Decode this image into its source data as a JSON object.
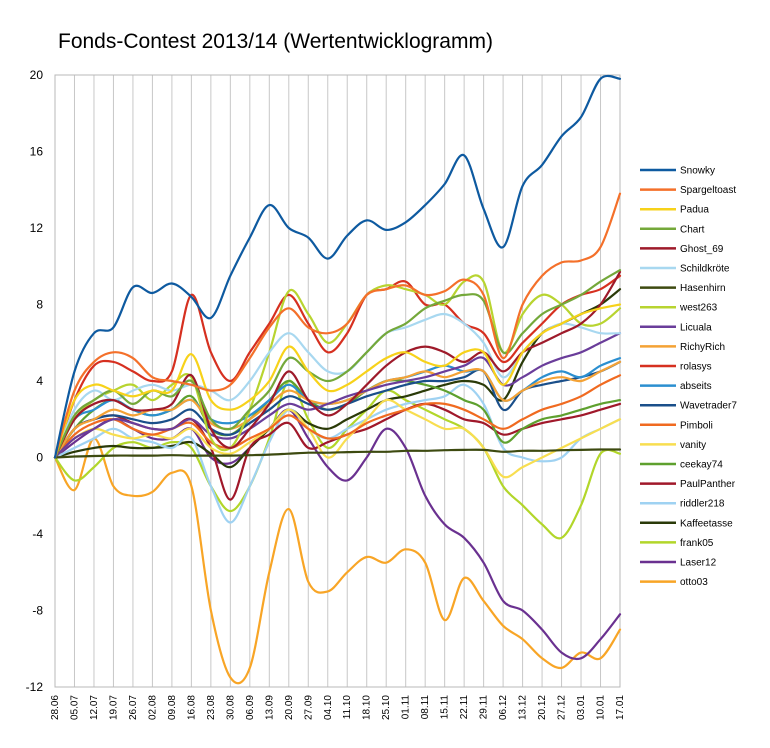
{
  "chart_data": {
    "type": "line",
    "title": "Fonds-Contest 2013/14 (Wertentwicklogramm)",
    "ylim": [
      -12,
      20
    ],
    "yticks": [
      -12,
      -8,
      -4,
      0,
      4,
      8,
      12,
      16,
      20
    ],
    "grid": "vertical",
    "legend_position": "right",
    "x": [
      "28.06",
      "05.07",
      "12.07",
      "19.07",
      "26.07",
      "02.08",
      "09.08",
      "16.08",
      "23.08",
      "30.08",
      "06.09",
      "13.09",
      "20.09",
      "27.09",
      "04.10",
      "11.10",
      "18.10",
      "25.10",
      "01.11",
      "08.11",
      "15.11",
      "22.11",
      "29.11",
      "06.12",
      "13.12",
      "20.12",
      "27.12",
      "03.01",
      "10.01",
      "17.01"
    ],
    "series": [
      {
        "name": "Snowky",
        "color": "#0e5aa0",
        "values": [
          0,
          4.5,
          6.5,
          6.8,
          8.9,
          8.6,
          9.1,
          8.4,
          7.3,
          9.5,
          11.5,
          13.2,
          12.0,
          11.5,
          10.4,
          11.6,
          12.4,
          11.9,
          12.3,
          13.2,
          14.3,
          15.8,
          13.0,
          11.0,
          14.2,
          15.3,
          16.8,
          17.8,
          19.8,
          19.8
        ]
      },
      {
        "name": "Spargeltoast",
        "color": "#f4702a",
        "values": [
          0,
          3.5,
          5.0,
          5.5,
          5.2,
          4.2,
          4.0,
          3.8,
          3.5,
          3.8,
          5.2,
          6.8,
          7.8,
          6.8,
          6.5,
          7.0,
          8.5,
          8.8,
          9.0,
          8.5,
          8.7,
          9.3,
          8.5,
          5.2,
          8.0,
          9.5,
          10.2,
          10.3,
          11.0,
          13.8
        ]
      },
      {
        "name": "Padua",
        "color": "#f7d21a",
        "values": [
          0,
          3.0,
          3.8,
          3.5,
          3.2,
          3.5,
          3.5,
          5.4,
          3.0,
          2.5,
          3.0,
          4.0,
          5.8,
          4.5,
          3.5,
          3.8,
          4.5,
          5.2,
          5.5,
          5.0,
          4.8,
          5.5,
          5.5,
          3.8,
          5.5,
          6.5,
          7.0,
          7.5,
          7.8,
          8.0
        ]
      },
      {
        "name": "Chart",
        "color": "#74a83a",
        "values": [
          0,
          2.2,
          3.0,
          3.5,
          2.8,
          3.5,
          3.2,
          4.0,
          2.0,
          1.5,
          2.5,
          3.5,
          5.2,
          4.5,
          4.0,
          4.5,
          5.5,
          6.5,
          7.0,
          7.8,
          8.2,
          8.5,
          8.2,
          5.5,
          6.5,
          7.5,
          8.0,
          8.5,
          9.2,
          9.8
        ]
      },
      {
        "name": "Ghost_69",
        "color": "#9e1a2a",
        "values": [
          0,
          2.0,
          2.8,
          3.0,
          2.5,
          2.5,
          2.8,
          4.3,
          1.5,
          0.5,
          1.5,
          2.8,
          4.5,
          3.0,
          2.2,
          2.8,
          3.8,
          4.8,
          5.5,
          5.8,
          5.5,
          5.0,
          5.5,
          4.5,
          5.5,
          6.0,
          6.5,
          7.0,
          8.0,
          9.7
        ]
      },
      {
        "name": "Schildkröte",
        "color": "#a8d8f0",
        "values": [
          0,
          2.5,
          3.5,
          3.0,
          3.5,
          3.8,
          3.5,
          3.8,
          3.5,
          3.0,
          4.0,
          5.5,
          6.5,
          5.5,
          4.5,
          4.5,
          5.5,
          6.5,
          6.8,
          7.2,
          7.5,
          7.0,
          6.0,
          4.2,
          5.5,
          6.5,
          7.0,
          6.8,
          6.5,
          6.5
        ]
      },
      {
        "name": "Hasenhirn",
        "color": "#3d4a10",
        "values": [
          0,
          0.05,
          0.08,
          0.1,
          0.1,
          0.1,
          0.12,
          0.1,
          0.1,
          0.1,
          0.12,
          0.15,
          0.2,
          0.25,
          0.25,
          0.28,
          0.3,
          0.3,
          0.35,
          0.35,
          0.38,
          0.4,
          0.4,
          0.3,
          0.35,
          0.35,
          0.38,
          0.4,
          0.42,
          0.42
        ]
      },
      {
        "name": "west263",
        "color": "#b8d430",
        "values": [
          0,
          2.0,
          3.0,
          3.5,
          3.8,
          3.0,
          3.8,
          4.2,
          1.0,
          0.5,
          2.5,
          5.5,
          8.7,
          7.5,
          6.0,
          7.0,
          8.5,
          9.0,
          8.8,
          8.5,
          8.0,
          9.2,
          9.2,
          5.5,
          7.5,
          8.5,
          8.0,
          7.0,
          7.0,
          7.8
        ]
      },
      {
        "name": "Licuala",
        "color": "#6a3d9a",
        "values": [
          0,
          1.0,
          1.5,
          2.0,
          1.8,
          1.5,
          1.5,
          2.0,
          1.2,
          1.0,
          1.5,
          2.2,
          2.8,
          2.5,
          2.8,
          3.2,
          3.5,
          3.8,
          4.0,
          4.2,
          4.5,
          4.8,
          5.2,
          3.8,
          4.2,
          4.8,
          5.2,
          5.5,
          6.0,
          6.5
        ]
      },
      {
        "name": "RichyRich",
        "color": "#f4a235",
        "values": [
          0,
          1.5,
          2.0,
          2.5,
          2.2,
          2.5,
          2.5,
          3.0,
          1.8,
          1.5,
          2.0,
          2.8,
          3.5,
          3.0,
          2.8,
          3.0,
          3.5,
          4.0,
          4.2,
          4.5,
          4.2,
          4.5,
          4.5,
          3.0,
          3.5,
          4.0,
          4.2,
          4.0,
          4.5,
          5.0
        ]
      },
      {
        "name": "rolasys",
        "color": "#d63020",
        "values": [
          0,
          3.0,
          4.8,
          5.0,
          4.5,
          4.0,
          4.5,
          8.5,
          5.5,
          4.0,
          5.5,
          7.0,
          8.5,
          7.0,
          5.5,
          6.5,
          8.5,
          8.8,
          9.2,
          8.0,
          8.0,
          7.0,
          6.5,
          5.0,
          6.0,
          7.0,
          8.0,
          8.5,
          8.8,
          9.5
        ]
      },
      {
        "name": "abseits",
        "color": "#2b8fd0",
        "values": [
          0,
          2.0,
          2.5,
          3.0,
          2.5,
          2.2,
          2.5,
          3.0,
          2.0,
          1.8,
          2.2,
          3.0,
          3.8,
          3.0,
          2.8,
          3.0,
          3.5,
          4.0,
          4.2,
          4.5,
          4.8,
          4.5,
          4.5,
          3.0,
          3.5,
          4.2,
          4.5,
          4.2,
          4.8,
          5.2
        ]
      },
      {
        "name": "Wavetrader7",
        "color": "#1a4f8a",
        "values": [
          0,
          1.5,
          2.0,
          2.2,
          2.0,
          1.8,
          2.0,
          2.5,
          1.5,
          1.2,
          1.8,
          2.5,
          3.2,
          2.8,
          2.5,
          2.8,
          3.2,
          3.5,
          3.8,
          4.0,
          4.0,
          4.2,
          4.5,
          2.5,
          3.5,
          3.8,
          4.0,
          4.2,
          4.5,
          5.0
        ]
      },
      {
        "name": "Pimboli",
        "color": "#f06a20",
        "values": [
          0,
          1.2,
          1.8,
          2.0,
          1.5,
          1.2,
          1.5,
          1.8,
          0.8,
          0.5,
          1.0,
          1.5,
          2.2,
          1.5,
          1.0,
          1.2,
          1.8,
          2.2,
          2.5,
          2.8,
          2.8,
          2.5,
          2.0,
          1.5,
          2.0,
          2.5,
          2.8,
          3.2,
          3.8,
          4.3
        ]
      },
      {
        "name": "vanity",
        "color": "#f8de50",
        "values": [
          0,
          1.0,
          1.5,
          1.2,
          1.0,
          1.2,
          1.0,
          1.5,
          0.5,
          0.2,
          0.8,
          1.5,
          2.5,
          1.5,
          0.0,
          1.0,
          2.0,
          3.0,
          2.5,
          2.0,
          1.5,
          1.5,
          0.5,
          -1.0,
          -0.5,
          0.0,
          0.5,
          1.0,
          1.5,
          2.0
        ]
      },
      {
        "name": "ceekay74",
        "color": "#5ea02e",
        "values": [
          0,
          1.5,
          2.5,
          3.0,
          2.5,
          2.2,
          2.5,
          3.2,
          1.5,
          1.2,
          2.0,
          3.0,
          4.0,
          3.0,
          2.5,
          2.8,
          3.5,
          4.0,
          4.0,
          3.8,
          3.5,
          3.0,
          2.5,
          0.8,
          1.5,
          2.0,
          2.2,
          2.5,
          2.8,
          3.0
        ]
      },
      {
        "name": "PaulPanther",
        "color": "#a0182a",
        "values": [
          0,
          1.5,
          2.0,
          2.2,
          1.8,
          1.5,
          1.5,
          2.0,
          0.5,
          -2.2,
          0.5,
          1.2,
          1.8,
          0.5,
          0.8,
          1.2,
          1.5,
          2.0,
          2.5,
          2.8,
          2.5,
          2.0,
          1.8,
          1.2,
          1.5,
          1.8,
          2.0,
          2.2,
          2.5,
          2.8
        ]
      },
      {
        "name": "riddler218",
        "color": "#9fd2f2",
        "values": [
          0,
          0.5,
          1.0,
          1.5,
          1.0,
          0.8,
          0.5,
          1.0,
          -1.5,
          -3.4,
          -1.5,
          0.8,
          2.5,
          1.5,
          1.0,
          1.5,
          2.0,
          2.5,
          2.8,
          3.0,
          3.2,
          3.8,
          2.8,
          0.5,
          0.0,
          -0.2,
          0.0,
          1.0,
          1.5,
          2.0
        ]
      },
      {
        "name": "Kaffeetasse",
        "color": "#2a3a08",
        "values": [
          0,
          0.3,
          0.5,
          0.6,
          0.5,
          0.5,
          0.6,
          0.8,
          0.2,
          -0.5,
          0.5,
          1.5,
          2.5,
          1.8,
          1.5,
          2.0,
          2.5,
          3.0,
          3.2,
          3.5,
          3.8,
          4.0,
          3.8,
          3.0,
          5.0,
          6.5,
          7.0,
          7.5,
          8.0,
          8.8
        ]
      },
      {
        "name": "frank05",
        "color": "#b2d62a",
        "values": [
          0,
          -1.2,
          -0.5,
          0.5,
          0.8,
          0.5,
          0.8,
          0.5,
          -1.5,
          -2.8,
          -1.5,
          1.0,
          4.0,
          2.0,
          0.5,
          1.5,
          2.5,
          3.5,
          3.0,
          2.5,
          2.0,
          1.5,
          0.5,
          -1.5,
          -2.5,
          -3.5,
          -4.2,
          -2.5,
          0.2,
          0.2
        ]
      },
      {
        "name": "Laser12",
        "color": "#6a3190",
        "values": [
          0,
          0.8,
          1.5,
          2.0,
          1.5,
          1.0,
          1.0,
          1.5,
          0.0,
          -0.3,
          0.5,
          1.5,
          2.5,
          1.0,
          -0.5,
          -1.2,
          0.0,
          1.5,
          0.5,
          -2.0,
          -3.5,
          -4.2,
          -5.5,
          -7.5,
          -8.0,
          -9.0,
          -10.2,
          -10.5,
          -9.5,
          -8.2
        ]
      },
      {
        "name": "otto03",
        "color": "#f8a526",
        "values": [
          0,
          -1.7,
          1.0,
          -1.5,
          -2.0,
          -1.8,
          -0.8,
          -1.5,
          -8.0,
          -11.5,
          -11.0,
          -6.0,
          -2.7,
          -6.5,
          -7.0,
          -6.0,
          -5.2,
          -5.5,
          -4.8,
          -5.5,
          -8.5,
          -6.3,
          -7.5,
          -8.8,
          -9.5,
          -10.5,
          -11.0,
          -10.2,
          -10.5,
          -9.0
        ]
      }
    ]
  }
}
